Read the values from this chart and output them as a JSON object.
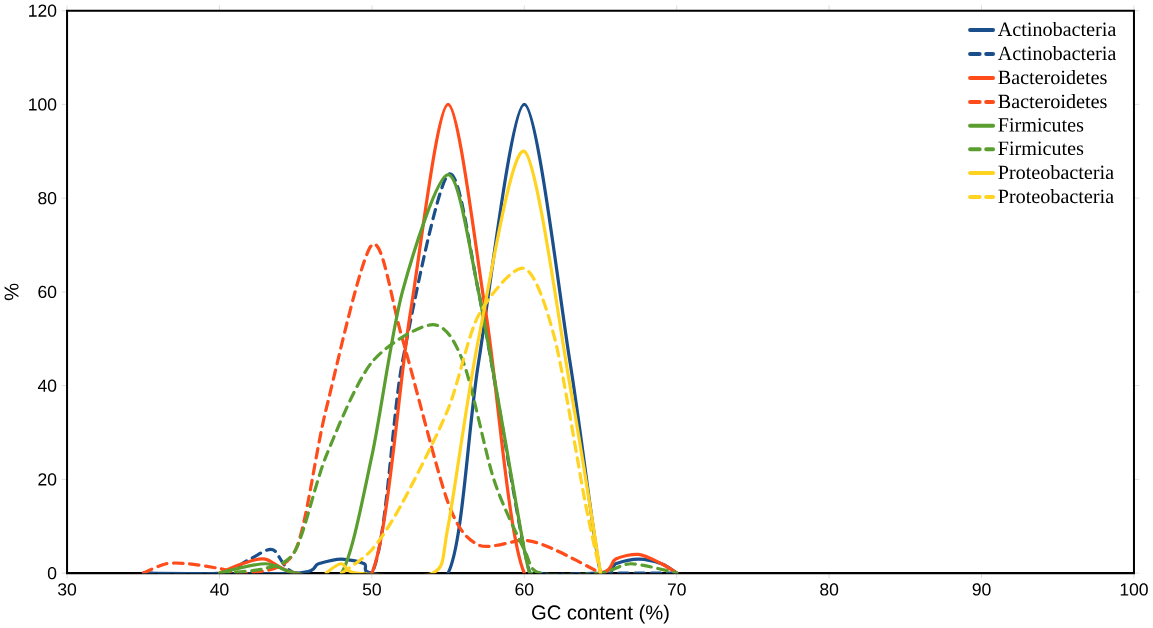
{
  "chart_data": {
    "type": "line",
    "xlabel": "GC content (%)",
    "ylabel": "%",
    "xlim": [
      30,
      100
    ],
    "xticks": [
      30,
      40,
      50,
      60,
      70,
      80,
      90,
      100
    ],
    "ylim": [
      0,
      120
    ],
    "yticks": [
      0,
      20,
      40,
      60,
      80,
      100,
      120
    ],
    "legend": "top right",
    "marker": "none",
    "series": [
      {
        "name": "Actinobacteria",
        "color": "#1b4f8c",
        "line_style": "solid",
        "x": [
          35,
          45,
          46.5,
          48,
          49.5,
          50,
          55,
          57,
          60,
          63,
          65,
          66,
          67.5,
          69,
          70
        ],
        "values": [
          0,
          0,
          2,
          3,
          2,
          0,
          0,
          45,
          100,
          45,
          0,
          2,
          3,
          2,
          0
        ]
      },
      {
        "name": "Actinobacteria",
        "color": "#1b4f8c",
        "line_style": "dashed",
        "x": [
          35,
          40,
          42,
          43.5,
          45,
          50,
          52,
          55,
          57,
          60,
          61,
          65,
          70
        ],
        "values": [
          0,
          0,
          3,
          5,
          0,
          0,
          45,
          85,
          60,
          5,
          0,
          0,
          0
        ]
      },
      {
        "name": "Bacteroidetes",
        "color": "#ff4c1a",
        "line_style": "solid",
        "x": [
          40,
          41.5,
          43,
          45,
          50,
          52.5,
          55,
          57.5,
          60,
          65,
          66,
          67.5,
          69,
          70
        ],
        "values": [
          0,
          2,
          3,
          0,
          0,
          55,
          100,
          55,
          0,
          0,
          3,
          4,
          2,
          0
        ]
      },
      {
        "name": "Bacteroidetes",
        "color": "#ff4c1a",
        "line_style": "dashed",
        "x": [
          35,
          36.5,
          38,
          40,
          42,
          45,
          47,
          50,
          52,
          55,
          57,
          60,
          62,
          65
        ],
        "values": [
          0,
          2,
          2,
          1,
          0,
          5,
          35,
          70,
          50,
          15,
          6,
          7,
          5,
          0
        ]
      },
      {
        "name": "Firmicutes",
        "color": "#5a9e2f",
        "line_style": "solid",
        "x": [
          40,
          43,
          45,
          48,
          50,
          52,
          55,
          57,
          60,
          60.5
        ],
        "values": [
          0,
          2,
          0,
          0,
          25,
          60,
          85,
          60,
          5,
          0
        ]
      },
      {
        "name": "Firmicutes",
        "color": "#5a9e2f",
        "line_style": "dashed",
        "x": [
          40,
          43,
          45,
          47,
          50,
          54,
          56,
          58,
          60,
          61,
          65,
          67,
          70
        ],
        "values": [
          0,
          1,
          5,
          25,
          45,
          53,
          45,
          20,
          5,
          0,
          0,
          2,
          0
        ]
      },
      {
        "name": "Proteobacteria",
        "color": "#ffd320",
        "line_style": "solid",
        "x": [
          47,
          48,
          49,
          54,
          55,
          57,
          60,
          63,
          65
        ],
        "values": [
          0,
          2,
          0,
          0,
          10,
          50,
          90,
          40,
          0
        ]
      },
      {
        "name": "Proteobacteria",
        "color": "#ffd320",
        "line_style": "dashed",
        "x": [
          48,
          50,
          52,
          55,
          57,
          60,
          62,
          64,
          65
        ],
        "values": [
          0,
          5,
          15,
          35,
          55,
          65,
          50,
          15,
          0
        ]
      }
    ]
  }
}
